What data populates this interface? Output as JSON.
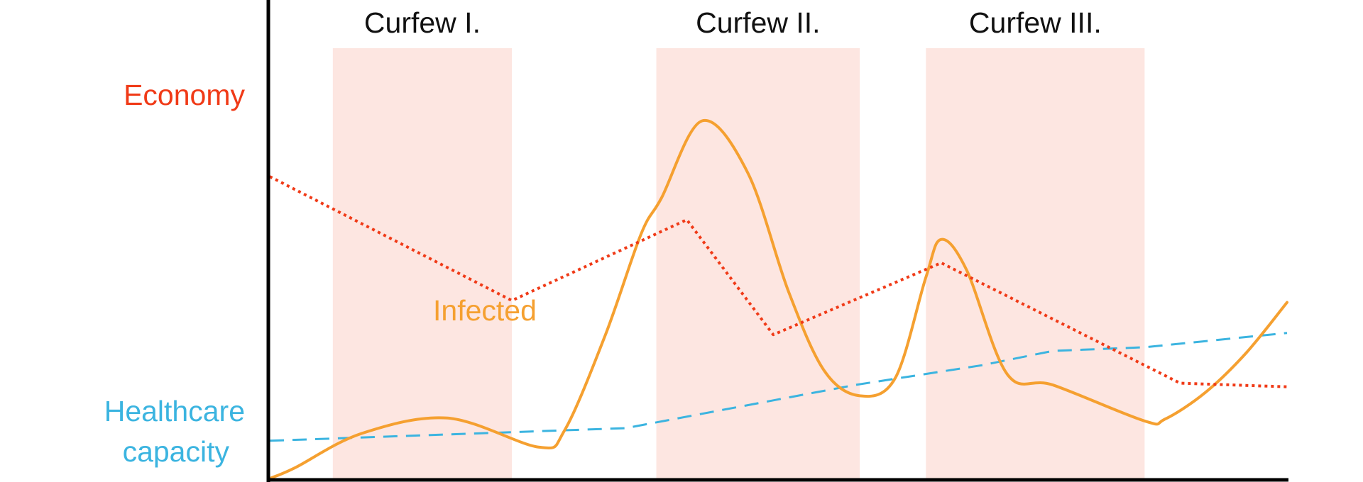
{
  "chart_data": {
    "type": "line",
    "title": "",
    "xlabel": "",
    "ylabel": "",
    "xlim": [
      0,
      100
    ],
    "ylim": [
      0,
      100
    ],
    "grid": false,
    "shaded_periods": [
      {
        "label": "Curfew I.",
        "start": 6.2,
        "end": 23.8,
        "color": "#fde6e1"
      },
      {
        "label": "Curfew II.",
        "start": 38.0,
        "end": 58.0,
        "color": "#fde6e1"
      },
      {
        "label": "Curfew III.",
        "start": 64.5,
        "end": 86.0,
        "color": "#fde6e1"
      }
    ],
    "series": [
      {
        "name": "Economy",
        "color": "#f03a17",
        "style": "dotted",
        "smooth": false,
        "x": [
          0,
          23.8,
          41.0,
          49.5,
          66.0,
          89.5,
          100
        ],
        "y": [
          84.0,
          49.5,
          72.0,
          40.0,
          60.0,
          26.5,
          25.5
        ]
      },
      {
        "name": "Infected",
        "color": "#f5a030",
        "style": "solid",
        "smooth": true,
        "x": [
          0,
          2.5,
          9.0,
          17.5,
          26.5,
          29.0,
          33.0,
          36.5,
          38.5,
          42.5,
          47.0,
          51.0,
          54.5,
          58.0,
          61.5,
          64.5,
          66.0,
          68.5,
          72.5,
          77.0,
          86.0,
          88.0,
          92.0,
          96.0,
          100
        ],
        "y": [
          0,
          3.0,
          12.5,
          16.8,
          8.7,
          13.5,
          40.0,
          68.0,
          78.0,
          99.5,
          85.0,
          52.0,
          30.0,
          23.0,
          28.0,
          56.0,
          66.5,
          58.0,
          29.0,
          26.0,
          16.0,
          16.5,
          24.0,
          35.0,
          49.0
        ]
      },
      {
        "name": "Healthcare capacity",
        "color": "#3bb4e0",
        "style": "dashed",
        "smooth": false,
        "x": [
          0,
          35.0,
          57.5,
          70.0,
          77.0,
          86.0,
          100
        ],
        "y": [
          10.5,
          14.0,
          26.0,
          31.5,
          35.5,
          36.5,
          40.5
        ]
      }
    ],
    "labels": {
      "economy": "Economy",
      "infected": "Infected",
      "healthcare_line1": "Healthcare",
      "healthcare_line2": "capacity"
    },
    "label_colors": {
      "economy": "#f03a17",
      "infected": "#f5a030",
      "healthcare": "#3bb4e0"
    }
  }
}
